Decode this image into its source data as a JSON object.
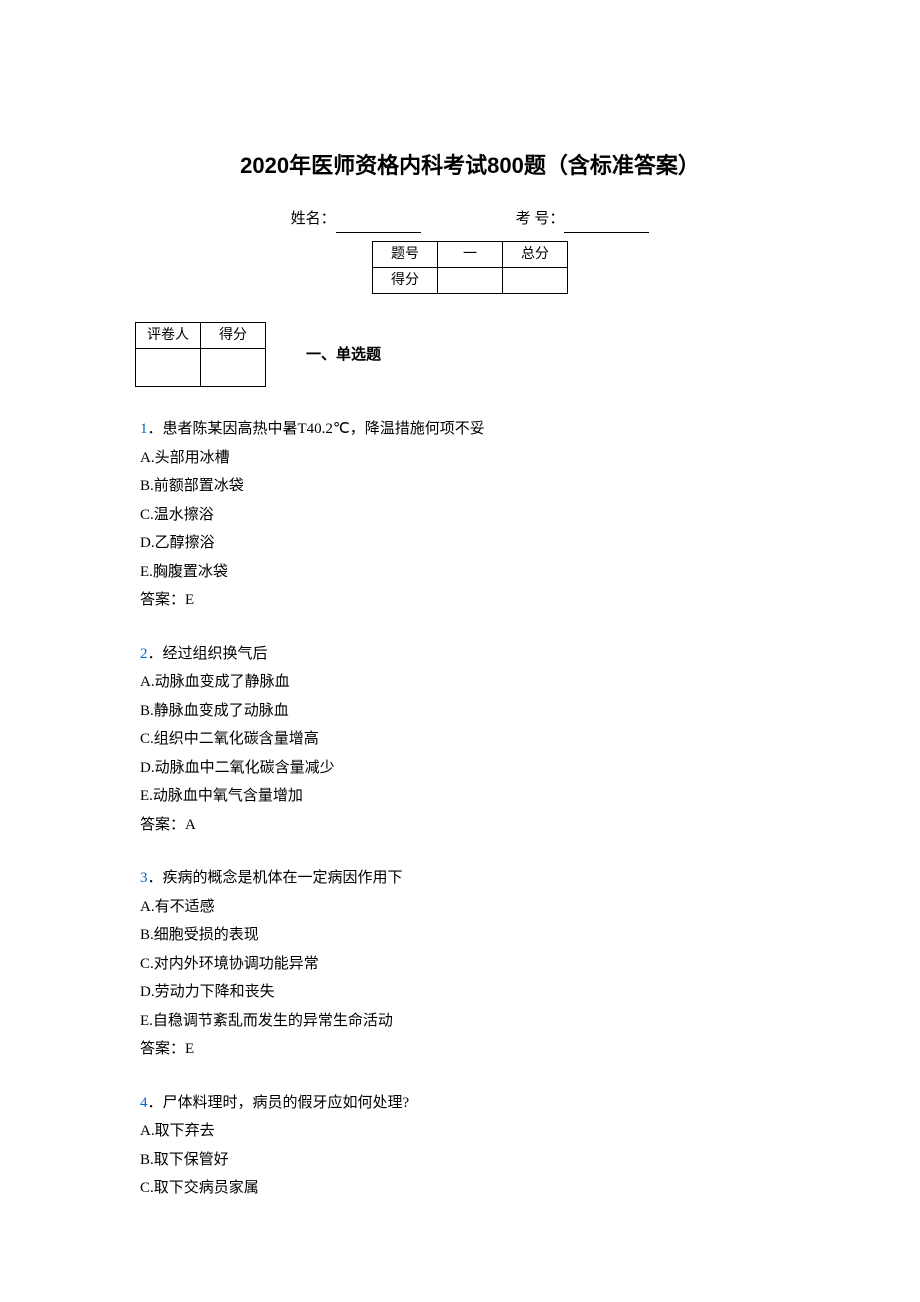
{
  "title": "2020年医师资格内科考试800题（含标准答案）",
  "info": {
    "name_label": "姓名：",
    "id_label": "考 号："
  },
  "score_table": {
    "headers": [
      "题号",
      "一",
      "总分"
    ],
    "row_label": "得分"
  },
  "grader_table": {
    "col1": "评卷人",
    "col2": "得分"
  },
  "section_label": "一、单选题",
  "style": {
    "question_number_color": "#0066cc",
    "text_color": "#000000",
    "background_color": "#ffffff",
    "title_fontsize": 22,
    "body_fontsize": 15
  },
  "questions": [
    {
      "num": "1",
      "stem": "．患者陈某因高热中暑T40.2℃，降温措施何项不妥",
      "options": [
        "A.头部用冰槽",
        "B.前额部置冰袋",
        "C.温水擦浴",
        "D.乙醇擦浴",
        "E.胸腹置冰袋"
      ],
      "answer": "答案：E"
    },
    {
      "num": "2",
      "stem": "．经过组织换气后",
      "options": [
        "A.动脉血变成了静脉血",
        "B.静脉血变成了动脉血",
        "C.组织中二氧化碳含量增高",
        "D.动脉血中二氧化碳含量减少",
        "E.动脉血中氧气含量增加"
      ],
      "answer": "答案：A"
    },
    {
      "num": "3",
      "stem": "．疾病的概念是机体在一定病因作用下",
      "options": [
        "A.有不适感",
        "B.细胞受损的表现",
        "C.对内外环境协调功能异常",
        "D.劳动力下降和丧失",
        "E.自稳调节紊乱而发生的异常生命活动"
      ],
      "answer": "答案：E"
    },
    {
      "num": "4",
      "stem": "．尸体料理时，病员的假牙应如何处理?",
      "options": [
        "A.取下弃去",
        "B.取下保管好",
        "C.取下交病员家属"
      ],
      "answer": ""
    }
  ]
}
